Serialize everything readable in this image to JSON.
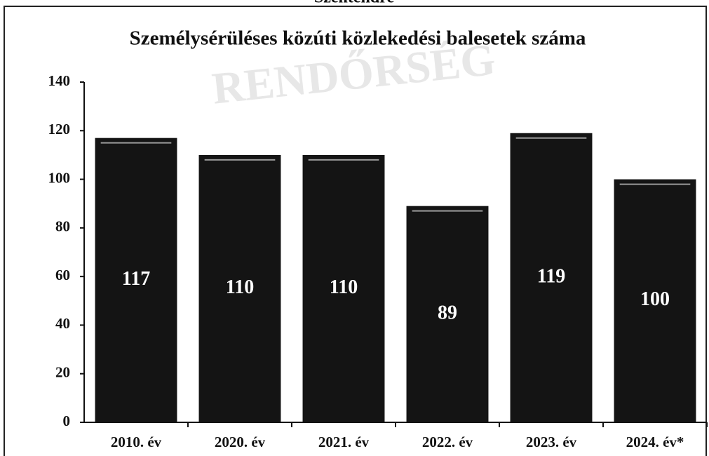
{
  "header": "Szentendre",
  "watermark": "RENDŐRSÉG",
  "chart_data": {
    "type": "bar",
    "title": "Személysérüléses közúti közlekedési balesetek száma",
    "categories": [
      "2010. év",
      "2020. év",
      "2021. év",
      "2022. év",
      "2023. év",
      "2024. év*"
    ],
    "values": [
      117,
      110,
      110,
      89,
      119,
      100
    ],
    "color": "#141414",
    "ylim": [
      0,
      140
    ],
    "yticks": [
      0,
      20,
      40,
      60,
      80,
      100,
      120,
      140
    ],
    "grid": false,
    "data_labels": true
  }
}
